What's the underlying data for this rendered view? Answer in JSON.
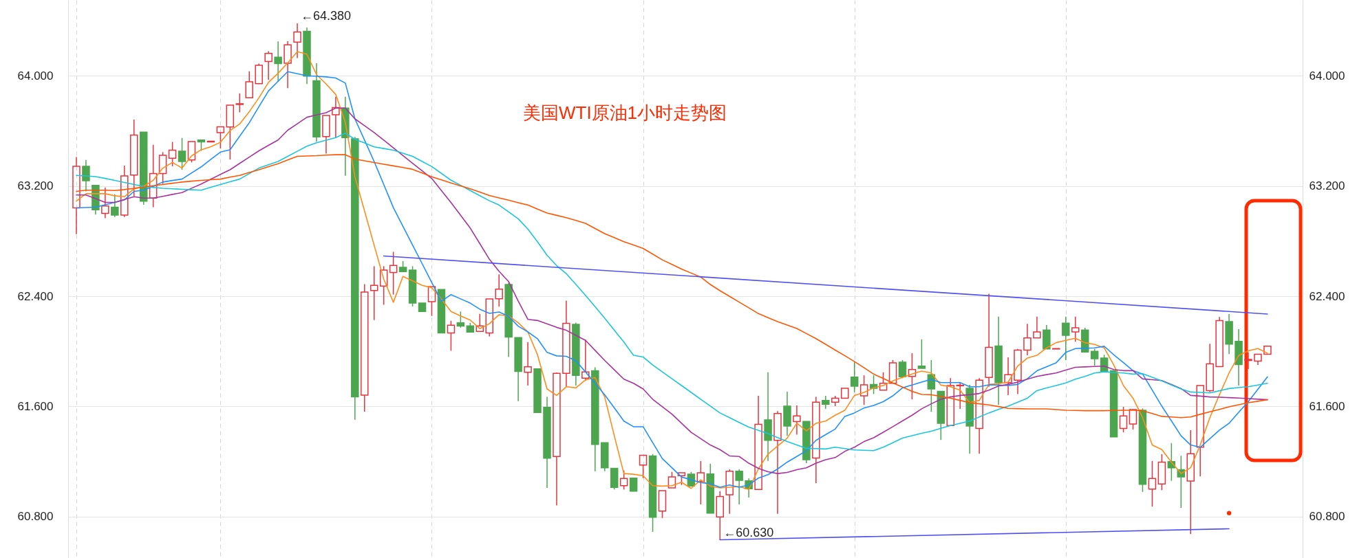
{
  "chart_data": {
    "type": "candlestick",
    "title": "美国WTI原油1小时走势图",
    "categories": [
      null,
      null,
      null,
      null,
      null,
      null,
      null,
      null,
      null,
      null,
      null,
      null,
      null,
      null,
      null,
      null,
      null,
      null,
      null,
      null,
      null,
      null,
      null,
      null,
      null,
      null,
      null,
      null,
      null,
      null,
      null,
      null,
      null,
      null,
      null,
      null,
      null,
      null,
      null,
      null,
      null,
      null,
      null,
      null,
      null,
      null,
      null,
      null,
      null,
      null,
      null,
      null,
      null,
      null,
      null,
      null,
      null,
      null,
      null,
      null,
      null,
      null,
      null,
      null,
      null,
      null,
      null,
      null,
      null,
      null,
      null,
      null,
      null,
      null,
      null,
      null,
      null,
      null,
      null,
      null,
      null,
      null,
      null,
      null,
      null,
      null,
      null,
      null,
      null,
      null,
      null,
      null,
      null,
      null,
      null,
      null,
      null,
      null,
      null,
      null,
      null,
      null,
      null,
      null,
      null,
      null,
      null,
      null,
      null,
      null,
      null,
      null,
      null,
      null,
      null,
      null,
      null,
      null,
      null,
      null,
      null,
      null,
      null,
      null,
      null
    ],
    "ohlc": [
      [
        63.041,
        63.41,
        62.85,
        63.343
      ],
      [
        63.343,
        63.389,
        63.161,
        63.238
      ],
      [
        63.204,
        63.204,
        62.993,
        63.028
      ],
      [
        63.001,
        63.188,
        62.966,
        63.055
      ],
      [
        63.046,
        63.14,
        62.975,
        62.989
      ],
      [
        62.989,
        63.348,
        62.975,
        63.273
      ],
      [
        63.28,
        63.682,
        63.126,
        63.57
      ],
      [
        63.591,
        63.591,
        63.064,
        63.09
      ],
      [
        63.112,
        63.499,
        63.046,
        63.291
      ],
      [
        63.291,
        63.446,
        63.215,
        63.423
      ],
      [
        63.401,
        63.52,
        63.343,
        63.46
      ],
      [
        63.453,
        63.549,
        63.318,
        63.378
      ],
      [
        63.389,
        63.522,
        63.371,
        63.522
      ],
      [
        63.534,
        63.534,
        63.455,
        63.52
      ],
      [
        63.52,
        63.525,
        63.52,
        63.525
      ],
      [
        63.588,
        63.63,
        63.472,
        63.63
      ],
      [
        63.629,
        63.787,
        63.392,
        63.787
      ],
      [
        63.792,
        63.872,
        63.735,
        63.797
      ],
      [
        63.84,
        64.032,
        63.837,
        63.956
      ],
      [
        63.943,
        64.089,
        63.94,
        64.076
      ],
      [
        64.103,
        64.179,
        63.97,
        64.162
      ],
      [
        64.135,
        64.249,
        63.957,
        64.089
      ],
      [
        64.091,
        64.251,
        63.91,
        64.224
      ],
      [
        64.244,
        64.38,
        64.128,
        64.318
      ],
      [
        64.323,
        64.35,
        63.94,
        63.997
      ],
      [
        63.964,
        64.091,
        63.521,
        63.556
      ],
      [
        63.559,
        63.712,
        63.435,
        63.712
      ],
      [
        63.717,
        63.848,
        63.551,
        63.769
      ],
      [
        63.766,
        63.848,
        63.274,
        63.551
      ],
      [
        63.543,
        63.556,
        61.504,
        61.67
      ],
      [
        61.682,
        62.487,
        61.563,
        62.43
      ],
      [
        62.442,
        62.618,
        62.227,
        62.479
      ],
      [
        62.474,
        62.618,
        62.338,
        62.59
      ],
      [
        62.573,
        62.722,
        62.412,
        62.623
      ],
      [
        62.61,
        62.655,
        62.578,
        62.578
      ],
      [
        62.59,
        62.618,
        62.326,
        62.35
      ],
      [
        62.35,
        62.35,
        62.289,
        62.289
      ],
      [
        62.361,
        62.47,
        62.257,
        62.47
      ],
      [
        62.449,
        62.449,
        62.133,
        62.133
      ],
      [
        62.133,
        62.222,
        62.004,
        62.19
      ],
      [
        62.207,
        62.289,
        62.172,
        62.183
      ],
      [
        62.185,
        62.207,
        62.14,
        62.14
      ],
      [
        62.145,
        62.272,
        62.145,
        62.185
      ],
      [
        62.133,
        62.38,
        62.108,
        62.38
      ],
      [
        62.382,
        62.559,
        62.324,
        62.451
      ],
      [
        62.485,
        62.498,
        61.959,
        62.103
      ],
      [
        62.1,
        62.1,
        61.639,
        61.854
      ],
      [
        61.848,
        62.067,
        61.752,
        61.888
      ],
      [
        61.873,
        61.873,
        61.556,
        61.556
      ],
      [
        61.594,
        61.669,
        61.009,
        61.224
      ],
      [
        61.237,
        61.846,
        60.881,
        61.84
      ],
      [
        61.84,
        62.368,
        61.743,
        62.203
      ],
      [
        62.196,
        62.208,
        61.752,
        61.826
      ],
      [
        61.806,
        62.083,
        61.785,
        61.851
      ],
      [
        61.859,
        61.884,
        61.13,
        61.324
      ],
      [
        61.337,
        61.337,
        61.13,
        61.155
      ],
      [
        61.151,
        61.151,
        60.997,
        61.012
      ],
      [
        61.025,
        61.135,
        60.997,
        61.077
      ],
      [
        61.08,
        61.08,
        60.985,
        60.985
      ],
      [
        61.175,
        61.246,
        61.08,
        61.246
      ],
      [
        61.241,
        61.254,
        60.69,
        60.796
      ],
      [
        60.84,
        60.989,
        60.79,
        60.989
      ],
      [
        61.009,
        61.125,
        61.009,
        61.088
      ],
      [
        61.097,
        61.118,
        61.03,
        61.118
      ],
      [
        61.108,
        61.125,
        61.019,
        61.022
      ],
      [
        61.055,
        61.204,
        60.889,
        61.118
      ],
      [
        61.11,
        61.184,
        60.826,
        60.826
      ],
      [
        60.798,
        60.985,
        60.63,
        60.947
      ],
      [
        60.959,
        61.143,
        60.82,
        61.13
      ],
      [
        61.13,
        61.143,
        60.889,
        61.063
      ],
      [
        61.06,
        61.077,
        60.939,
        61.002
      ],
      [
        60.997,
        61.677,
        60.997,
        61.47
      ],
      [
        61.503,
        61.848,
        61.204,
        61.354
      ],
      [
        61.354,
        61.566,
        60.82,
        61.549
      ],
      [
        61.602,
        61.707,
        61.387,
        61.458
      ],
      [
        61.49,
        61.607,
        61.395,
        61.531
      ],
      [
        61.491,
        61.491,
        61.188,
        61.213
      ],
      [
        61.226,
        61.669,
        61.042,
        61.631
      ],
      [
        61.644,
        61.677,
        61.582,
        61.616
      ],
      [
        61.631,
        61.677,
        61.602,
        61.66
      ],
      [
        61.66,
        61.732,
        61.66,
        61.732
      ],
      [
        61.813,
        61.921,
        61.702,
        61.747
      ],
      [
        61.677,
        61.826,
        61.611,
        61.757
      ],
      [
        61.76,
        61.826,
        61.69,
        61.732
      ],
      [
        61.718,
        61.848,
        61.718,
        61.768
      ],
      [
        61.768,
        61.937,
        61.768,
        61.917
      ],
      [
        61.921,
        61.937,
        61.805,
        61.815
      ],
      [
        61.818,
        61.987,
        61.652,
        61.868
      ],
      [
        61.893,
        62.087,
        61.876,
        61.876
      ],
      [
        61.831,
        61.937,
        61.561,
        61.727
      ],
      [
        61.71,
        61.71,
        61.357,
        61.478
      ],
      [
        61.461,
        61.806,
        61.461,
        61.752
      ],
      [
        61.75,
        61.776,
        61.582,
        61.754
      ],
      [
        61.732,
        61.757,
        61.257,
        61.458
      ],
      [
        61.44,
        61.806,
        61.257,
        61.79
      ],
      [
        61.81,
        62.418,
        61.743,
        62.029
      ],
      [
        62.039,
        62.252,
        61.611,
        61.773
      ],
      [
        61.773,
        61.956,
        61.682,
        61.83
      ],
      [
        61.79,
        62.017,
        61.69,
        62.009
      ],
      [
        62.009,
        62.199,
        61.971,
        62.097
      ],
      [
        62.097,
        62.252,
        62.097,
        62.141
      ],
      [
        62.155,
        62.191,
        62.017,
        62.017
      ],
      [
        62.017,
        62.02,
        62.017,
        62.02
      ],
      [
        62.204,
        62.252,
        61.937,
        62.116
      ],
      [
        62.141,
        62.252,
        62.07,
        62.171
      ],
      [
        62.155,
        62.171,
        61.995,
        61.995
      ],
      [
        62.0,
        62.017,
        61.896,
        61.946
      ],
      [
        61.951,
        61.975,
        61.854,
        61.854
      ],
      [
        61.859,
        61.859,
        61.379,
        61.379
      ],
      [
        61.44,
        61.597,
        61.412,
        61.531
      ],
      [
        61.473,
        61.577,
        61.433,
        61.577
      ],
      [
        61.572,
        61.586,
        60.98,
        61.035
      ],
      [
        61.0,
        61.204,
        60.873,
        61.077
      ],
      [
        61.038,
        61.254,
        60.992,
        61.196
      ],
      [
        61.199,
        61.334,
        61.06,
        61.155
      ],
      [
        61.141,
        61.242,
        60.864,
        61.088
      ],
      [
        61.058,
        61.428,
        60.674,
        61.257
      ],
      [
        61.304,
        61.752,
        61.092,
        61.752
      ],
      [
        61.715,
        62.055,
        61.705,
        61.909
      ],
      [
        61.889,
        62.249,
        61.889,
        62.223
      ],
      [
        62.216,
        62.271,
        61.98,
        62.053
      ],
      [
        62.072,
        62.161,
        61.752,
        61.904
      ],
      [
        61.934,
        61.992,
        61.871,
        61.941
      ],
      [
        61.929,
        61.979,
        61.901,
        61.979
      ],
      [
        61.979,
        62.037,
        61.979,
        62.037
      ]
    ],
    "series": [
      {
        "type": "line",
        "color": "#ff8c1a",
        "values": [
          63.09,
          63.144,
          63.144,
          63.144,
          63.129,
          63.122,
          63.179,
          63.197,
          63.241,
          63.33,
          63.371,
          63.33,
          63.419,
          63.463,
          63.485,
          63.517,
          63.602,
          63.65,
          63.739,
          63.84,
          63.952,
          64.018,
          64.094,
          64.175,
          64.157,
          64.009,
          63.94,
          63.865,
          63.662,
          63.266,
          63.019,
          62.77,
          62.524,
          62.356,
          62.544,
          62.511,
          62.479,
          62.462,
          62.38,
          62.289,
          62.257,
          62.227,
          62.165,
          62.2,
          62.266,
          62.257,
          62.208,
          62.141,
          61.976,
          61.727,
          61.68,
          61.743,
          61.735,
          61.793,
          61.81,
          61.669,
          61.387,
          61.113,
          61.108,
          61.097,
          61.025,
          61.022,
          61.025,
          61.05,
          61.005,
          61.067,
          61.022,
          61.009,
          61.014,
          61.019,
          60.997,
          61.146,
          61.254,
          61.312,
          61.37,
          61.478,
          61.423,
          61.478,
          61.494,
          61.536,
          61.572,
          61.68,
          61.702,
          61.735,
          61.752,
          61.785,
          61.81,
          61.835,
          61.857,
          61.843,
          61.755,
          61.743,
          61.718,
          61.627,
          61.644,
          61.76,
          61.765,
          61.777,
          61.893,
          61.951,
          61.971,
          62.025,
          62.063,
          62.08,
          62.095,
          62.063,
          62.05,
          62.025,
          61.901,
          61.752,
          61.66,
          61.519,
          61.32,
          61.287,
          61.196,
          61.113,
          61.155,
          61.32,
          61.519,
          61.685,
          61.843,
          61.97,
          62.004,
          62.02,
          61.987
        ]
      },
      {
        "type": "line",
        "color": "#1e90ff",
        "values": [
          63.041,
          63.044,
          63.046,
          63.064,
          63.081,
          63.099,
          63.161,
          63.17,
          63.197,
          63.229,
          63.24,
          63.25,
          63.295,
          63.339,
          63.393,
          63.446,
          63.463,
          63.561,
          63.659,
          63.775,
          63.89,
          63.96,
          64.03,
          64.015,
          64.0,
          63.996,
          63.992,
          63.984,
          63.947,
          63.687,
          63.533,
          63.378,
          63.211,
          63.043,
          62.907,
          62.771,
          62.636,
          62.5,
          62.362,
          62.412,
          62.381,
          62.35,
          62.306,
          62.276,
          62.286,
          62.254,
          62.183,
          62.141,
          62.092,
          61.992,
          61.967,
          61.964,
          61.931,
          61.851,
          61.768,
          61.685,
          61.59,
          61.494,
          61.453,
          61.453,
          61.337,
          61.221,
          61.155,
          61.088,
          61.068,
          61.047,
          61.039,
          61.014,
          61.03,
          61.014,
          61.03,
          61.08,
          61.105,
          61.146,
          61.196,
          61.237,
          61.279,
          61.354,
          61.395,
          61.436,
          61.528,
          61.553,
          61.589,
          61.607,
          61.635,
          61.677,
          61.735,
          61.756,
          61.777,
          61.797,
          61.773,
          61.773,
          61.773,
          61.743,
          61.743,
          61.757,
          61.755,
          61.752,
          61.76,
          61.801,
          61.859,
          61.888,
          61.917,
          61.992,
          62.02,
          62.023,
          62.025,
          62.037,
          61.975,
          61.918,
          61.86,
          61.835,
          61.719,
          61.602,
          61.495,
          61.387,
          61.32,
          61.304,
          61.366,
          61.428,
          61.478,
          61.557,
          61.635,
          61.725,
          61.815
        ]
      },
      {
        "type": "line",
        "color": "#a8329e",
        "values": [
          63.135,
          63.135,
          63.108,
          63.081,
          63.081,
          63.102,
          63.122,
          63.112,
          63.112,
          63.125,
          63.139,
          63.152,
          63.184,
          63.215,
          63.249,
          63.284,
          63.318,
          63.364,
          63.41,
          63.455,
          63.495,
          63.534,
          63.605,
          63.652,
          63.699,
          63.716,
          63.732,
          63.766,
          63.766,
          63.687,
          63.638,
          63.588,
          63.533,
          63.477,
          63.421,
          63.365,
          63.31,
          63.254,
          63.167,
          63.08,
          62.988,
          62.895,
          62.782,
          62.668,
          62.581,
          62.506,
          62.365,
          62.232,
          62.224,
          62.2,
          62.174,
          62.153,
          62.116,
          62.08,
          62.007,
          61.934,
          61.866,
          61.798,
          61.768,
          61.727,
          61.652,
          61.598,
          61.544,
          61.478,
          61.412,
          61.366,
          61.32,
          61.287,
          61.241,
          61.237,
          61.188,
          61.151,
          61.126,
          61.113,
          61.121,
          61.141,
          61.155,
          61.188,
          61.213,
          61.229,
          61.274,
          61.304,
          61.345,
          61.373,
          61.413,
          61.453,
          61.495,
          61.536,
          61.583,
          61.619,
          61.652,
          61.669,
          61.68,
          61.685,
          61.694,
          61.718,
          61.748,
          61.76,
          61.777,
          61.798,
          61.818,
          61.831,
          61.843,
          61.864,
          61.884,
          61.887,
          61.89,
          61.893,
          61.868,
          61.86,
          61.86,
          61.8,
          61.794,
          61.788,
          61.759,
          61.73,
          61.68,
          61.675,
          61.669,
          61.667,
          61.664,
          61.661,
          61.657,
          61.653,
          61.649
        ]
      },
      {
        "type": "line",
        "color": "#19c6dc",
        "values": [
          63.277,
          63.273,
          63.268,
          63.255,
          63.241,
          63.226,
          63.211,
          63.197,
          63.19,
          63.183,
          63.18,
          63.176,
          63.173,
          63.17,
          63.191,
          63.211,
          63.231,
          63.25,
          63.29,
          63.33,
          63.354,
          63.378,
          63.415,
          63.452,
          63.489,
          63.514,
          63.533,
          63.551,
          63.583,
          63.539,
          63.512,
          63.484,
          63.472,
          63.46,
          63.438,
          63.415,
          63.378,
          63.341,
          63.292,
          63.242,
          63.205,
          63.167,
          63.13,
          63.093,
          63.062,
          63.012,
          62.962,
          62.888,
          62.796,
          62.697,
          62.622,
          62.564,
          62.486,
          62.407,
          62.324,
          62.241,
          62.154,
          62.067,
          61.971,
          61.959,
          61.901,
          61.851,
          61.801,
          61.752,
          61.702,
          61.652,
          61.603,
          61.553,
          61.519,
          61.484,
          61.45,
          61.427,
          61.403,
          61.374,
          61.345,
          61.321,
          61.296,
          61.294,
          61.291,
          61.304,
          61.294,
          61.284,
          61.282,
          61.279,
          61.304,
          61.337,
          61.37,
          61.388,
          61.405,
          61.42,
          61.441,
          61.461,
          61.478,
          61.494,
          61.524,
          61.553,
          61.578,
          61.602,
          61.631,
          61.66,
          61.715,
          61.734,
          61.752,
          61.771,
          61.798,
          61.818,
          61.843,
          61.851,
          61.847,
          61.843,
          61.835,
          61.838,
          61.812,
          61.785,
          61.756,
          61.727,
          61.705,
          61.702,
          61.698,
          61.714,
          61.73,
          61.737,
          61.743,
          61.756,
          61.768
        ]
      },
      {
        "type": "line",
        "color": "#ff5500",
        "values": [
          63.161,
          63.17,
          63.17,
          63.17,
          63.167,
          63.174,
          63.183,
          63.192,
          63.202,
          63.211,
          63.22,
          63.229,
          63.235,
          63.241,
          63.246,
          63.25,
          63.264,
          63.277,
          63.298,
          63.318,
          63.34,
          63.362,
          63.389,
          63.415,
          63.418,
          63.42,
          63.424,
          63.427,
          63.427,
          63.395,
          63.383,
          63.37,
          63.358,
          63.346,
          63.334,
          63.321,
          63.294,
          63.267,
          63.245,
          63.222,
          63.201,
          63.18,
          63.156,
          63.131,
          63.114,
          63.097,
          63.079,
          63.062,
          63.033,
          63.004,
          62.987,
          62.97,
          62.95,
          62.929,
          62.892,
          62.854,
          62.825,
          62.796,
          62.772,
          62.747,
          62.706,
          62.664,
          62.631,
          62.597,
          62.568,
          62.539,
          62.485,
          62.44,
          62.399,
          62.357,
          62.316,
          62.274,
          62.245,
          62.216,
          62.191,
          62.166,
          62.129,
          62.092,
          62.051,
          62.009,
          61.968,
          61.926,
          61.881,
          61.835,
          61.803,
          61.771,
          61.741,
          61.71,
          61.687,
          61.685,
          61.673,
          61.66,
          61.644,
          61.627,
          61.619,
          61.611,
          61.599,
          61.586,
          61.584,
          61.582,
          61.582,
          61.582,
          61.577,
          61.572,
          61.571,
          61.569,
          61.569,
          61.569,
          61.571,
          61.572,
          61.572,
          61.569,
          61.549,
          61.528,
          61.524,
          61.519,
          61.524,
          61.543,
          61.561,
          61.579,
          61.597,
          61.612,
          61.627,
          61.638,
          61.649
        ]
      },
      {
        "type": "line",
        "color": "#5050f0",
        "values": [
          null,
          null,
          null,
          null,
          null,
          null,
          null,
          null,
          null,
          null,
          null,
          null,
          null,
          null,
          null,
          null,
          null,
          null,
          null,
          null,
          null,
          null,
          null,
          null,
          null,
          null,
          null,
          null,
          null,
          null,
          null,
          null,
          62.692,
          null,
          null,
          null,
          null,
          null,
          null,
          null,
          null,
          null,
          null,
          null,
          null,
          null,
          null,
          null,
          null,
          null,
          null,
          null,
          null,
          null,
          null,
          null,
          null,
          null,
          null,
          null,
          null,
          null,
          null,
          null,
          null,
          null,
          null,
          null,
          null,
          null,
          null,
          null,
          null,
          null,
          null,
          null,
          null,
          null,
          null,
          null,
          null,
          null,
          null,
          null,
          null,
          null,
          null,
          null,
          null,
          null,
          null,
          null,
          null,
          null,
          null,
          null,
          null,
          null,
          null,
          null,
          null,
          null,
          null,
          null,
          null,
          null,
          null,
          null,
          null,
          null,
          null,
          null,
          null,
          null,
          null,
          null,
          null,
          null,
          null,
          null,
          null,
          null,
          null,
          null,
          62.271
        ]
      },
      {
        "type": "line",
        "color": "#5050f0",
        "values": [
          null,
          null,
          null,
          null,
          null,
          null,
          null,
          null,
          null,
          null,
          null,
          null,
          null,
          null,
          null,
          null,
          null,
          null,
          null,
          null,
          null,
          null,
          null,
          null,
          null,
          null,
          null,
          null,
          null,
          null,
          null,
          null,
          null,
          null,
          null,
          null,
          null,
          null,
          null,
          null,
          null,
          null,
          null,
          null,
          null,
          null,
          null,
          null,
          null,
          null,
          null,
          null,
          null,
          null,
          null,
          null,
          null,
          null,
          null,
          null,
          null,
          null,
          null,
          null,
          null,
          null,
          null,
          60.632,
          null,
          null,
          null,
          null,
          null,
          null,
          null,
          null,
          null,
          null,
          null,
          null,
          null,
          null,
          null,
          null,
          null,
          null,
          null,
          null,
          null,
          null,
          null,
          null,
          null,
          null,
          null,
          null,
          null,
          null,
          null,
          null,
          null,
          null,
          null,
          null,
          null,
          null,
          null,
          null,
          null,
          null,
          null,
          null,
          null,
          null,
          null,
          null,
          null,
          null,
          null,
          null,
          60.712,
          null,
          null,
          null,
          null
        ]
      },
      {
        "type": "scatter",
        "color": "#ff2a00",
        "values": [
          null,
          null,
          null,
          null,
          null,
          null,
          null,
          null,
          null,
          null,
          null,
          null,
          null,
          null,
          null,
          null,
          null,
          null,
          null,
          null,
          null,
          null,
          null,
          null,
          null,
          null,
          null,
          null,
          null,
          null,
          null,
          null,
          null,
          null,
          null,
          null,
          null,
          null,
          null,
          null,
          null,
          null,
          null,
          null,
          null,
          null,
          null,
          null,
          null,
          null,
          null,
          null,
          null,
          null,
          null,
          null,
          null,
          null,
          null,
          null,
          null,
          null,
          null,
          null,
          null,
          null,
          null,
          null,
          null,
          null,
          null,
          null,
          null,
          null,
          null,
          null,
          null,
          null,
          null,
          null,
          null,
          null,
          null,
          null,
          null,
          null,
          null,
          null,
          null,
          null,
          null,
          null,
          null,
          null,
          null,
          null,
          null,
          null,
          null,
          null,
          null,
          null,
          null,
          null,
          null,
          null,
          null,
          null,
          null,
          null,
          null,
          null,
          null,
          null,
          null,
          null,
          null,
          null,
          null,
          null,
          60.826,
          null,
          null,
          null,
          null
        ]
      }
    ],
    "annotations": [
      "←64.380",
      {
        "text": "←60.630",
        "y": 60.63
      }
    ],
    "ylim": [
      60.5,
      64.55
    ],
    "yticks": [
      {
        "value": 60.8,
        "label": "60.800"
      },
      {
        "value": 61.6,
        "label": "61.600"
      },
      {
        "value": 62.4,
        "label": "62.400"
      },
      {
        "value": 63.2,
        "label": "63.200"
      },
      {
        "value": 64,
        "label": "64.000"
      }
    ],
    "y2lim": [
      60.5,
      64.55
    ],
    "y2ticks": [
      {
        "value": 60.8,
        "label": "60.800"
      },
      {
        "value": 61.6,
        "label": "61.600"
      },
      {
        "value": 62.4,
        "label": "62.400"
      },
      {
        "value": 63.2,
        "label": "63.200"
      },
      {
        "value": 64,
        "label": "64.000"
      }
    ],
    "grid": "y"
  }
}
